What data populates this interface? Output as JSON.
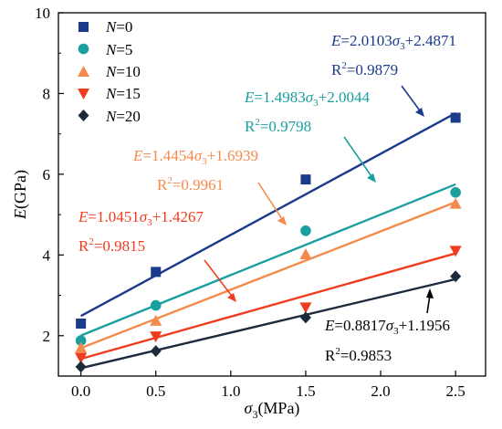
{
  "chart_data": {
    "type": "scatter",
    "xlabel_symbol": "σ",
    "xlabel_sub": "3",
    "xlabel_unit": "(MPa)",
    "ylabel_symbol": "E",
    "ylabel_unit": "(GPa)",
    "xlim": [
      -0.15,
      2.7
    ],
    "ylim": [
      1,
      10
    ],
    "xticks": [
      "0.0",
      "0.5",
      "1.0",
      "1.5",
      "2.0",
      "2.5"
    ],
    "xtick_values": [
      0,
      0.5,
      1.0,
      1.5,
      2.0,
      2.5
    ],
    "yticks": [
      "2",
      "4",
      "6",
      "8",
      "10"
    ],
    "ytick_values": [
      2,
      4,
      6,
      8,
      10
    ],
    "grid": false,
    "legend_position": "top-left",
    "x": [
      0,
      0.5,
      1.5,
      2.5
    ],
    "series": [
      {
        "name_var": "N",
        "name_val": "=0",
        "color": "#1a3a8a",
        "marker": "square",
        "values": [
          2.3,
          3.58,
          5.87,
          7.4
        ],
        "fit": {
          "slope": 2.0103,
          "intercept": 2.4871
        },
        "eq_E": "E",
        "eq_main": "=2.0103",
        "eq_sym": "σ",
        "eq_sub": "3",
        "eq_tail": "+2.4871",
        "r2_pre": "R",
        "r2_sup": "2",
        "r2_post": "=0.9879"
      },
      {
        "name_var": "N",
        "name_val": "=5",
        "color": "#1a9ea0",
        "marker": "circle",
        "values": [
          1.88,
          2.75,
          4.6,
          5.55
        ],
        "fit": {
          "slope": 1.4983,
          "intercept": 2.0044
        },
        "eq_E": "E",
        "eq_main": "=1.4983",
        "eq_sym": "σ",
        "eq_sub": "3",
        "eq_tail": "+2.0044",
        "r2_pre": "R",
        "r2_sup": "2",
        "r2_post": "=0.9798"
      },
      {
        "name_var": "N",
        "name_val": "=10",
        "color": "#f58a4b",
        "marker": "triangle-up",
        "values": [
          1.7,
          2.37,
          4.02,
          5.27
        ],
        "fit": {
          "slope": 1.4454,
          "intercept": 1.6939
        },
        "eq_E": "E",
        "eq_main": "=1.4454",
        "eq_sym": "σ",
        "eq_sub": "3",
        "eq_tail": "+1.6939",
        "r2_pre": "R",
        "r2_sup": "2",
        "r2_post": "=0.9961"
      },
      {
        "name_var": "N",
        "name_val": "=15",
        "color": "#f03c1e",
        "marker": "triangle-down",
        "values": [
          1.45,
          1.98,
          2.7,
          4.1
        ],
        "fit": {
          "slope": 1.0451,
          "intercept": 1.4267
        },
        "eq_E": "E",
        "eq_main": "=1.0451",
        "eq_sym": "σ",
        "eq_sub": "3",
        "eq_tail": "+1.4267",
        "r2_pre": "R",
        "r2_sup": "2",
        "r2_post": "=0.9815"
      },
      {
        "name_var": "N",
        "name_val": "=20",
        "color": "#1c2a3c",
        "marker": "diamond",
        "values": [
          1.23,
          1.62,
          2.45,
          3.47
        ],
        "fit": {
          "slope": 0.8817,
          "intercept": 1.1956
        },
        "eq_E": "E",
        "eq_main": "=0.8817",
        "eq_sym": "σ",
        "eq_sub": "3",
        "eq_tail": "+1.1956",
        "r2_pre": "R",
        "r2_sup": "2",
        "r2_post": "=0.9853"
      }
    ]
  }
}
